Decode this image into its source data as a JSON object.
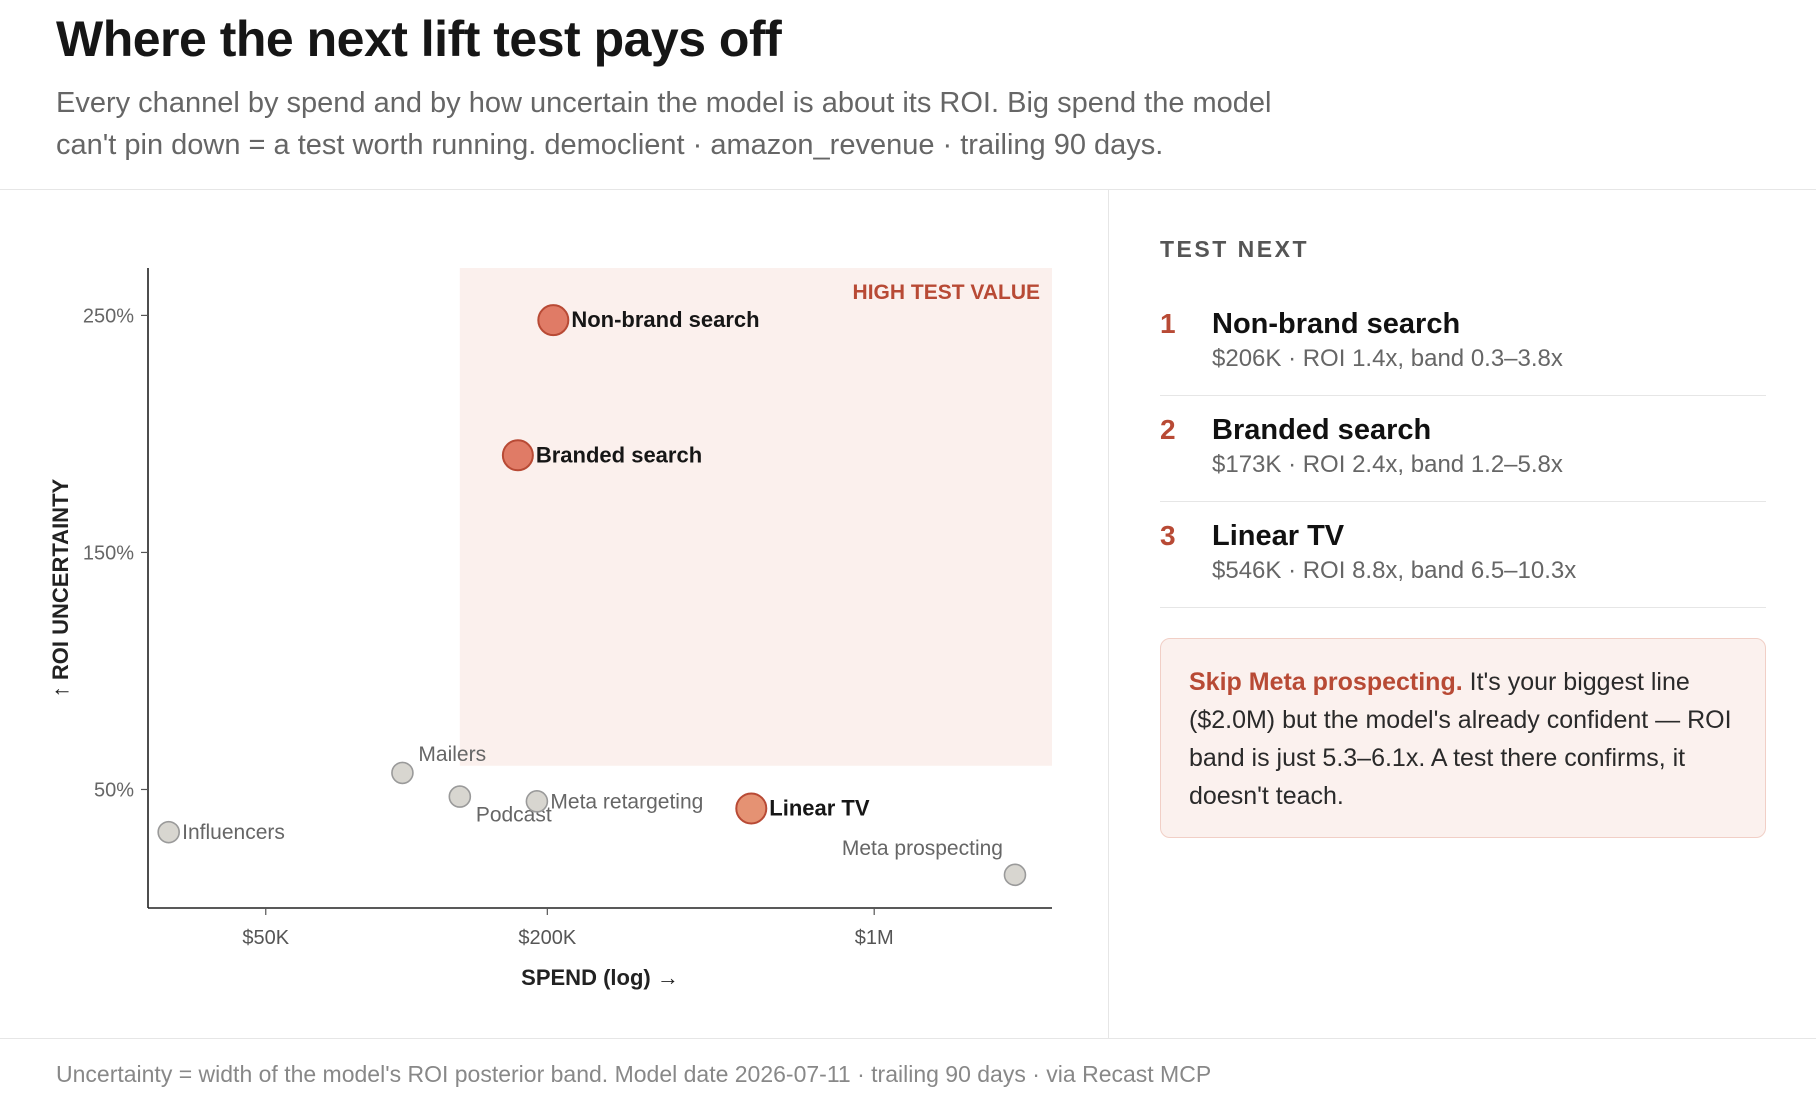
{
  "header": {
    "title": "Where the next lift test pays off",
    "subtitle": "Every channel by spend and by how uncertain the model is about its ROI. Big spend the model can't pin down = a test worth running. democlient · amazon_revenue · trailing 90 days."
  },
  "chart_data": {
    "type": "scatter",
    "xlabel": "SPEND (log) →",
    "ylabel": "↑ ROI UNCERTAINTY",
    "x_scale": "log",
    "xlim": [
      28000,
      2400000
    ],
    "ylim": [
      0,
      270
    ],
    "x_ticks": [
      {
        "value": 50000,
        "label": "$50K"
      },
      {
        "value": 200000,
        "label": "$200K"
      },
      {
        "value": 1000000,
        "label": "$1M"
      }
    ],
    "y_ticks": [
      {
        "value": 50,
        "label": "50%"
      },
      {
        "value": 150,
        "label": "150%"
      },
      {
        "value": 250,
        "label": "250%"
      }
    ],
    "region": {
      "label": "HIGH TEST VALUE",
      "x_min": 130000,
      "y_min": 60,
      "color": "#fbf0ed"
    },
    "points": [
      {
        "name": "Influencers",
        "spend": 31000,
        "uncertainty": 32,
        "highlight": false,
        "label_side": "right"
      },
      {
        "name": "Mailers",
        "spend": 98000,
        "uncertainty": 57,
        "highlight": false,
        "label_side": "above-right"
      },
      {
        "name": "Podcast",
        "spend": 130000,
        "uncertainty": 47,
        "highlight": false,
        "label_side": "below-right"
      },
      {
        "name": "Meta retargeting",
        "spend": 190000,
        "uncertainty": 45,
        "highlight": false,
        "label_side": "right"
      },
      {
        "name": "Non-brand search",
        "spend": 206000,
        "uncertainty": 248,
        "highlight": true,
        "color": "#e07b66",
        "label_side": "right"
      },
      {
        "name": "Branded search",
        "spend": 173000,
        "uncertainty": 191,
        "highlight": true,
        "color": "#e07b66",
        "label_side": "right"
      },
      {
        "name": "Linear TV",
        "spend": 546000,
        "uncertainty": 42,
        "highlight": true,
        "color": "#e59273",
        "label_side": "right"
      },
      {
        "name": "Meta prospecting",
        "spend": 2000000,
        "uncertainty": 14,
        "highlight": false,
        "label_side": "above-left"
      }
    ],
    "colors": {
      "muted_point": "#d8d6d0",
      "muted_stroke": "#9a9a9a",
      "highlight_stroke": "#b84a35",
      "region_label": "#b84a35"
    }
  },
  "side_panel": {
    "heading": "TEST NEXT",
    "items": [
      {
        "rank": "1",
        "name": "Non-brand search",
        "detail": "$206K · ROI 1.4x, band 0.3–3.8x"
      },
      {
        "rank": "2",
        "name": "Branded search",
        "detail": "$173K · ROI 2.4x, band 1.2–5.8x"
      },
      {
        "rank": "3",
        "name": "Linear TV",
        "detail": "$546K · ROI 8.8x, band 6.5–10.3x"
      }
    ],
    "skip": {
      "lead": "Skip Meta prospecting.",
      "text": " It's your biggest line ($2.0M) but the model's already confident — ROI band is just 5.3–6.1x. A test there confirms, it doesn't teach."
    }
  },
  "footer": {
    "text": "Uncertainty = width of the model's ROI posterior band. Model date 2026-07-11 · trailing 90 days · via Recast MCP"
  }
}
